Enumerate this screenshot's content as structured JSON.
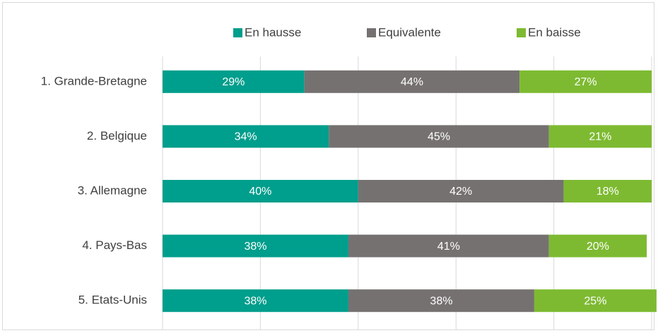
{
  "chart_data": {
    "type": "stacked-barh",
    "categories": [
      "1. Grande-Bretagne",
      "2. Belgique",
      "3. Allemagne",
      "4. Pays-Bas",
      "5. Etats-Unis"
    ],
    "series": [
      {
        "name": "En hausse",
        "color": "#009e8c",
        "values": [
          29,
          34,
          40,
          38,
          38
        ],
        "value_labels": [
          "29%",
          "34%",
          "40%",
          "38%",
          "38%"
        ]
      },
      {
        "name": "Equivalente",
        "color": "#767171",
        "values": [
          44,
          45,
          42,
          41,
          38
        ],
        "value_labels": [
          "44%",
          "45%",
          "42%",
          "41%",
          "38%"
        ]
      },
      {
        "name": "En baisse",
        "color": "#7dba31",
        "values": [
          27,
          21,
          18,
          20,
          25
        ],
        "value_labels": [
          "27%",
          "21%",
          "18%",
          "20%",
          "25%"
        ]
      }
    ],
    "xlim": [
      0,
      100
    ],
    "xticks": [
      0,
      20,
      40,
      60,
      80,
      100
    ],
    "grid": true,
    "legend": "top"
  }
}
